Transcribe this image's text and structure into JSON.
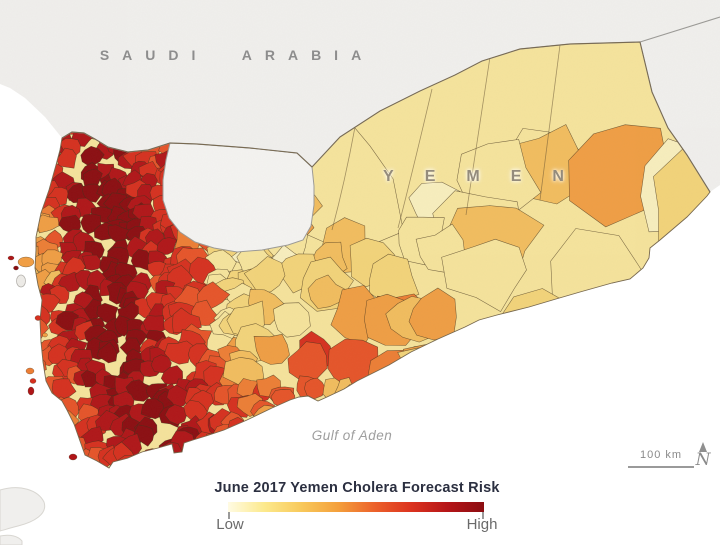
{
  "map": {
    "region_labels": {
      "saudi_arabia": "SAUDI ARABIA",
      "yemen": "YEMEN",
      "gulf_of_aden": "Gulf of Aden"
    },
    "scale_bar": {
      "label": "100 km"
    },
    "north_arrow_label": "N",
    "sea_color": "#FFFFFF",
    "neighbor_land_color": "#F1F0EE",
    "border_color": "#9B9A96",
    "district_line_color": "#42301A",
    "no_data_fill": "#F5F4F2",
    "risk_palette": [
      "#F8EFBE",
      "#F6E49C",
      "#F3D47A",
      "#F2BD5E",
      "#F09E44",
      "#ED7E35",
      "#E65429",
      "#D6301F",
      "#B01518",
      "#8B0D11"
    ]
  },
  "legend": {
    "title": "June 2017 Yemen Cholera Forecast Risk",
    "min_label": "Low",
    "max_label": "High",
    "title_color": "#2B2F40",
    "gradient": [
      "#FFFBE3",
      "#FCE98C",
      "#F8C95B",
      "#F4A03C",
      "#EC622B",
      "#DC331F",
      "#B51518",
      "#8B0D11"
    ]
  }
}
